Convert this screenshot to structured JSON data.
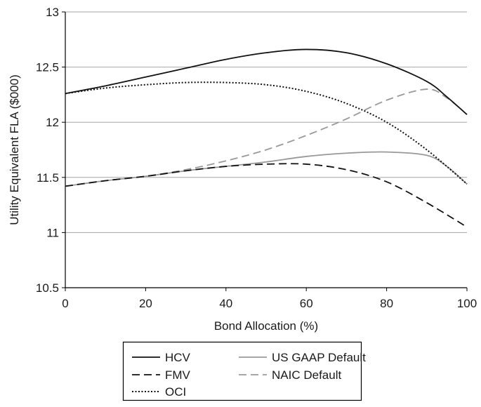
{
  "chart_data": {
    "type": "line",
    "title": "",
    "xlabel": "Bond Allocation (%)",
    "ylabel": "Utility Equivalent FLA ($000)",
    "xlim": [
      0,
      100
    ],
    "ylim": [
      10.5,
      13
    ],
    "x_ticks": [
      "0",
      "20",
      "40",
      "60",
      "80",
      "100"
    ],
    "y_ticks": [
      "10.5",
      "11",
      "11.5",
      "12",
      "12.5",
      "13"
    ],
    "grid": "horizontal",
    "legend_position": "bottom",
    "series": [
      {
        "name": "HCV",
        "color": "#111111",
        "style": "solid",
        "x": [
          0,
          10,
          20,
          30,
          40,
          50,
          60,
          70,
          80,
          90,
          95,
          100
        ],
        "y": [
          12.26,
          12.33,
          12.41,
          12.49,
          12.57,
          12.63,
          12.66,
          12.63,
          12.53,
          12.37,
          12.23,
          12.07
        ]
      },
      {
        "name": "FMV",
        "color": "#111111",
        "style": "dashed",
        "x": [
          0,
          10,
          20,
          30,
          40,
          50,
          60,
          70,
          80,
          90,
          100
        ],
        "y": [
          11.42,
          11.47,
          11.51,
          11.56,
          11.6,
          11.62,
          11.62,
          11.57,
          11.46,
          11.27,
          11.05
        ]
      },
      {
        "name": "OCI",
        "color": "#111111",
        "style": "dotted",
        "x": [
          0,
          10,
          20,
          30,
          40,
          50,
          60,
          70,
          80,
          90,
          100
        ],
        "y": [
          12.26,
          12.31,
          12.34,
          12.36,
          12.36,
          12.34,
          12.28,
          12.17,
          12.0,
          11.75,
          11.44
        ]
      },
      {
        "name": "US GAAP Default",
        "color": "#999999",
        "style": "solid",
        "x": [
          0,
          10,
          20,
          30,
          40,
          50,
          60,
          70,
          80,
          90,
          95,
          100
        ],
        "y": [
          11.42,
          11.47,
          11.51,
          11.56,
          11.6,
          11.64,
          11.69,
          11.72,
          11.73,
          11.7,
          11.6,
          11.44
        ]
      },
      {
        "name": "NAIC Default",
        "color": "#999999",
        "style": "dashed",
        "x": [
          0,
          10,
          20,
          30,
          40,
          50,
          60,
          70,
          80,
          90,
          95,
          100
        ],
        "y": [
          11.42,
          11.47,
          11.51,
          11.57,
          11.65,
          11.75,
          11.88,
          12.03,
          12.2,
          12.3,
          12.22,
          12.07
        ]
      }
    ]
  }
}
